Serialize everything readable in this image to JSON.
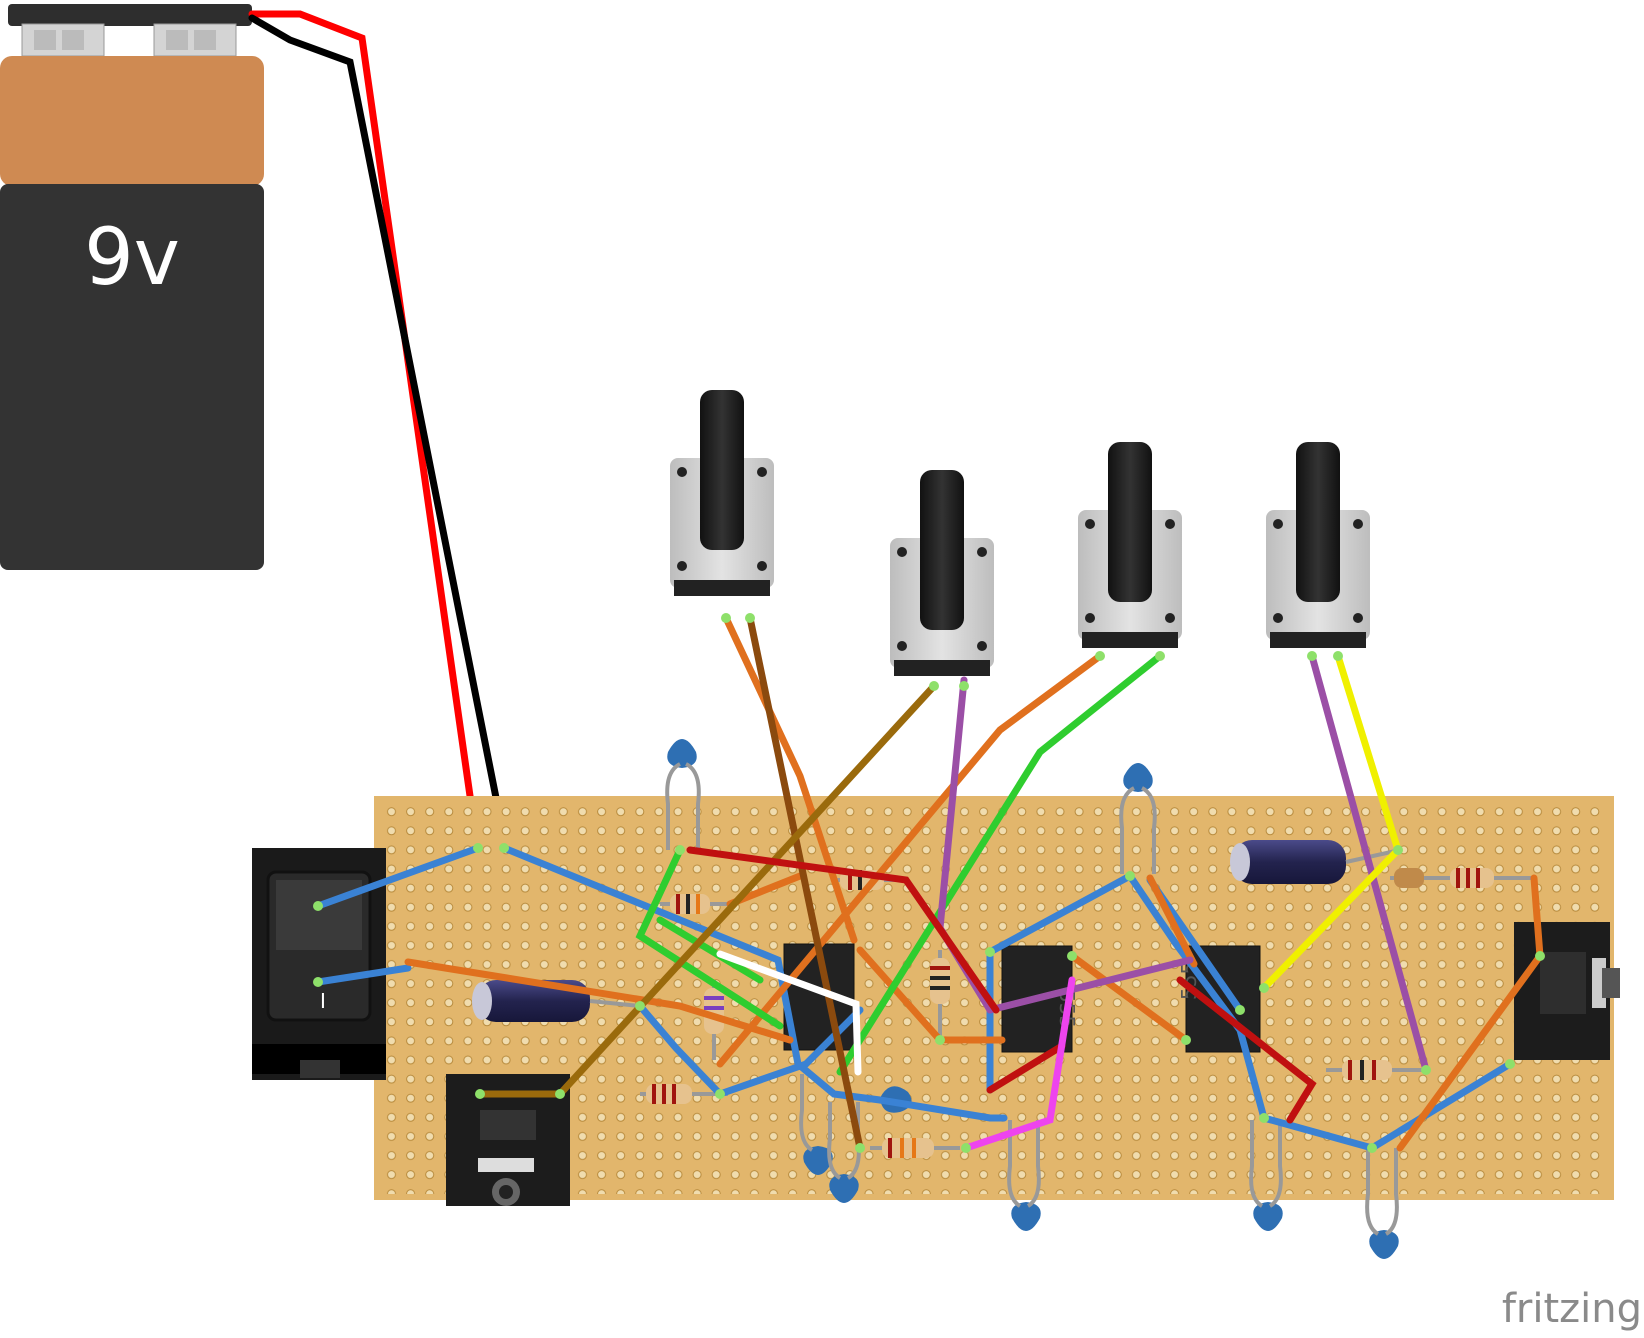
{
  "battery": {
    "label": "9v",
    "casing_top_color": "#cf8a52",
    "casing_body_color": "#333333"
  },
  "switch": {
    "marking": "I"
  },
  "branding": {
    "logo_text": "fritzing"
  },
  "ic_marking": "555",
  "colors": {
    "board": "#e2b66c",
    "hole": "#f2e2bf",
    "wire_red": "#ff0000",
    "wire_black": "#000000",
    "blue_wire": "#3a82d4",
    "orange_wire": "#e0701e",
    "green_wire": "#2fcd2f",
    "purple_wire": "#9b4fa6",
    "yellow_wire": "#f0f000",
    "brown_wire": "#8b4a0e",
    "olive_wire": "#9a6a0c",
    "darkred_wire": "#c01010",
    "magenta_wire": "#ee44ee",
    "capacitor_ceramic": "#2e6fb3",
    "capacitor_electrolytic": "#2a2a5e"
  }
}
